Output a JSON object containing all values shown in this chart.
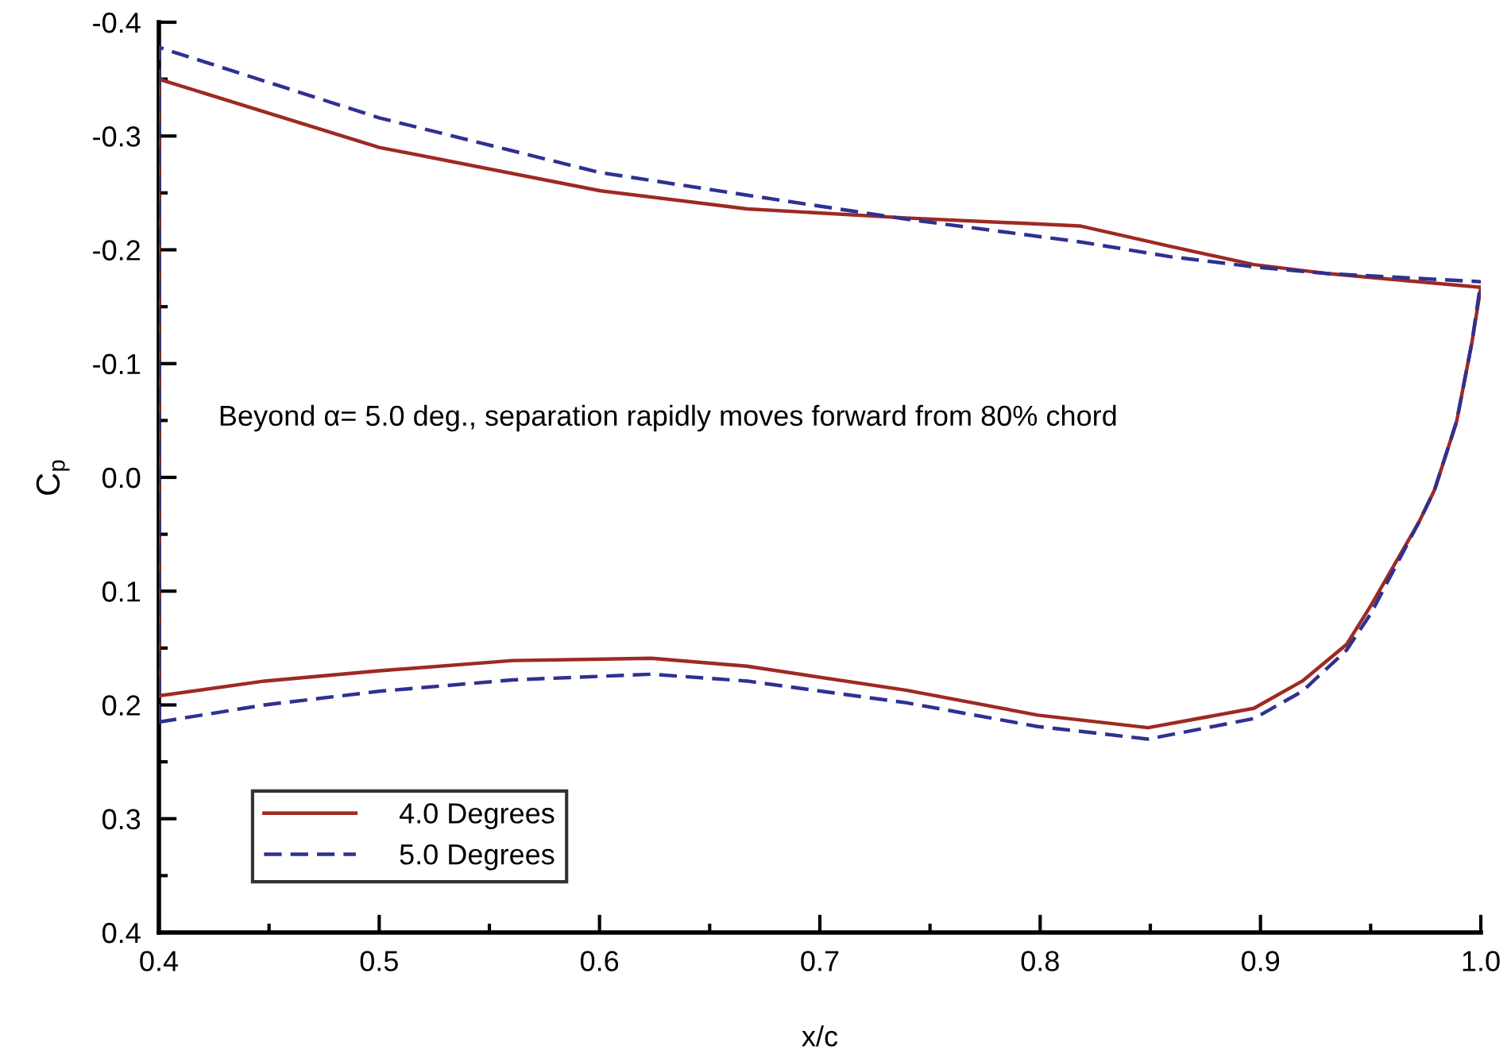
{
  "chart_data": {
    "type": "line",
    "xlabel": "x/c",
    "ylabel": "C$_{p}$",
    "annotations": [
      "Beyond α= 5.0 deg., separation rapidly moves forward from 80% chord"
    ],
    "series": [
      {
        "name": "4.0 Degrees",
        "color": "#9e2a22",
        "line_style": "solid",
        "x": [
          0.4,
          0.448,
          0.5,
          0.5605,
          0.6235,
          0.667,
          0.739,
          0.799,
          0.849,
          0.897,
          0.919,
          0.939,
          0.95,
          0.972,
          0.979,
          0.989,
          0.996,
          1.0
        ],
        "values": [
          0.192,
          0.179,
          0.17,
          0.161,
          0.159,
          0.166,
          0.187,
          0.209,
          0.22,
          0.203,
          0.179,
          0.147,
          0.113,
          0.039,
          0.011,
          -0.049,
          -0.119,
          -0.167
        ]
      },
      {
        "color": "#9e2a22",
        "line_style": "solid",
        "x": [
          0.4,
          0.4,
          0.5,
          0.6,
          0.667,
          0.739,
          0.818,
          0.859,
          0.897,
          0.931,
          1.0
        ],
        "values": [
          0.192,
          -0.35,
          -0.29,
          -0.252,
          -0.236,
          -0.228,
          -0.221,
          -0.203,
          -0.187,
          -0.179,
          -0.167
        ]
      },
      {
        "name": "5.0 Degrees",
        "color": "#2e3192",
        "line_style": "dashed",
        "x": [
          0.4,
          0.448,
          0.5,
          0.5605,
          0.6235,
          0.667,
          0.739,
          0.799,
          0.849,
          0.897,
          0.919,
          0.939,
          0.95,
          0.972,
          0.979,
          0.989,
          0.996,
          1.0
        ],
        "values": [
          0.215,
          0.2,
          0.188,
          0.178,
          0.173,
          0.179,
          0.198,
          0.219,
          0.23,
          0.212,
          0.188,
          0.152,
          0.12,
          0.039,
          0.011,
          -0.049,
          -0.119,
          -0.172
        ]
      },
      {
        "color": "#2e3192",
        "line_style": "dashed",
        "x": [
          0.4,
          0.4,
          0.5,
          0.6,
          0.667,
          0.739,
          0.818,
          0.859,
          0.897,
          0.931,
          1.0
        ],
        "values": [
          0.215,
          -0.378,
          -0.316,
          -0.268,
          -0.248,
          -0.227,
          -0.207,
          -0.194,
          -0.185,
          -0.179,
          -0.172
        ]
      }
    ],
    "xlim": [
      0.4,
      1.0
    ],
    "ylim": [
      0.4,
      -0.4
    ],
    "xticks": [
      0.4,
      0.5,
      0.6,
      0.7,
      0.8,
      0.9,
      {
        "value": 1.0,
        "label": "1.0"
      }
    ],
    "yticks": [
      {
        "value": -0.4,
        "label": "-0.4"
      },
      {
        "value": -0.3,
        "label": "-0.3"
      },
      {
        "value": -0.2,
        "label": "-0.2"
      },
      {
        "value": -0.1,
        "label": "-0.1"
      },
      {
        "value": 0,
        "label": "0.0"
      },
      0.1,
      0.2,
      0.3,
      0.4
    ],
    "grid": false,
    "legend": "bottom left",
    "marker": "none"
  }
}
